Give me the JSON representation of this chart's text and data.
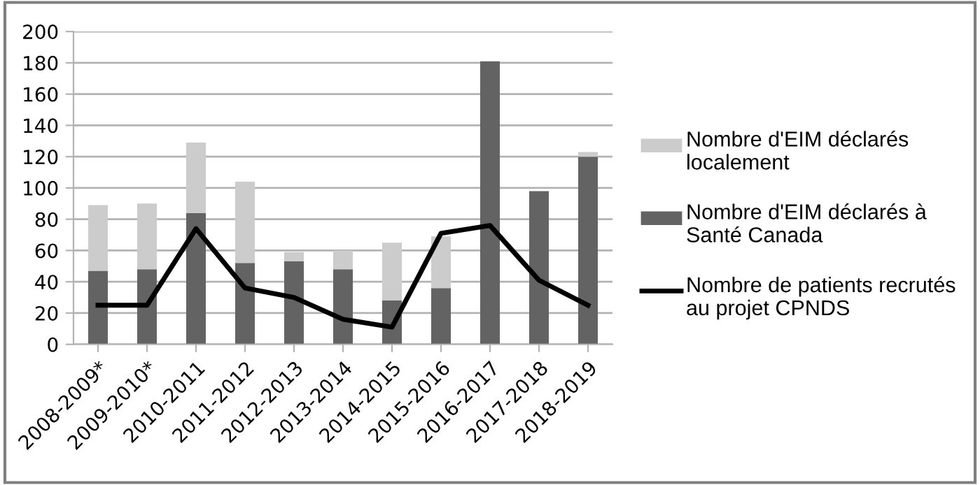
{
  "chart_data": {
    "type": "bar",
    "stacked": true,
    "categories": [
      "2008-2009*",
      "2009-2010*",
      "2010-2011",
      "2011-2012",
      "2012-2013",
      "2013-2014",
      "2014-2015",
      "2015-2016",
      "2016-2017",
      "2017-2018",
      "2018-2019"
    ],
    "series": [
      {
        "name": "Nombre d'EIM déclarés à Santé Canada",
        "color": "#636363",
        "values": [
          47,
          48,
          84,
          52,
          53,
          48,
          28,
          36,
          181,
          98,
          120
        ]
      },
      {
        "name": "Nombre d'EIM déclarés localement",
        "color": "#cccccc",
        "values": [
          42,
          42,
          45,
          52,
          6,
          12,
          37,
          33,
          0,
          0,
          3
        ]
      },
      {
        "name": "Nombre de patients recrutés au projet CPNDS",
        "type": "line",
        "color": "#000000",
        "values": [
          25,
          25,
          74,
          36,
          30,
          16,
          11,
          71,
          76,
          41,
          25
        ]
      }
    ],
    "ylim": [
      0,
      200
    ],
    "yticks": [
      0,
      20,
      40,
      60,
      80,
      100,
      120,
      140,
      160,
      180,
      200
    ],
    "grid": "y",
    "legend": "right"
  }
}
